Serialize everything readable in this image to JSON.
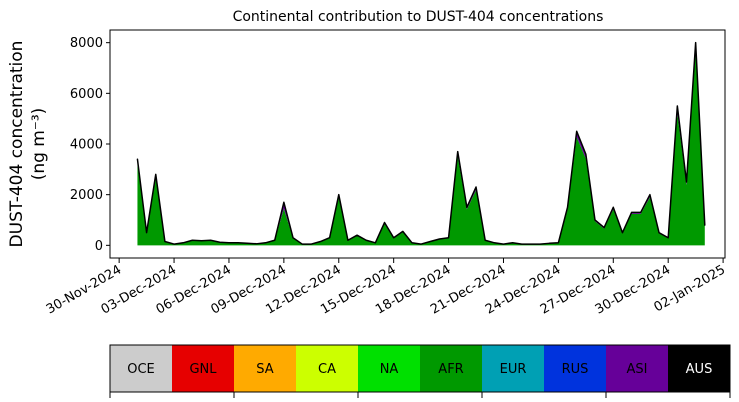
{
  "chart_data": {
    "type": "stacked_area",
    "title": "Continental contribution to DUST-404 concentrations",
    "ylabel": [
      "DUST-404 concentration",
      "(ng m⁻³)"
    ],
    "x": [
      "2024-12-01T00:00",
      "2024-12-01T12:00",
      "2024-12-02T00:00",
      "2024-12-02T12:00",
      "2024-12-03T00:00",
      "2024-12-03T12:00",
      "2024-12-04T00:00",
      "2024-12-04T12:00",
      "2024-12-05T00:00",
      "2024-12-05T12:00",
      "2024-12-06T00:00",
      "2024-12-06T12:00",
      "2024-12-07T00:00",
      "2024-12-07T12:00",
      "2024-12-08T00:00",
      "2024-12-08T12:00",
      "2024-12-09T00:00",
      "2024-12-09T12:00",
      "2024-12-10T00:00",
      "2024-12-10T12:00",
      "2024-12-11T00:00",
      "2024-12-11T12:00",
      "2024-12-12T00:00",
      "2024-12-12T12:00",
      "2024-12-13T00:00",
      "2024-12-13T12:00",
      "2024-12-14T00:00",
      "2024-12-14T12:00",
      "2024-12-15T00:00",
      "2024-12-15T12:00",
      "2024-12-16T00:00",
      "2024-12-16T12:00",
      "2024-12-17T00:00",
      "2024-12-17T12:00",
      "2024-12-18T00:00",
      "2024-12-18T12:00",
      "2024-12-19T00:00",
      "2024-12-19T12:00",
      "2024-12-20T00:00",
      "2024-12-20T12:00",
      "2024-12-21T00:00",
      "2024-12-21T12:00",
      "2024-12-22T00:00",
      "2024-12-22T12:00",
      "2024-12-23T00:00",
      "2024-12-23T12:00",
      "2024-12-24T00:00",
      "2024-12-24T12:00",
      "2024-12-25T00:00",
      "2024-12-25T12:00",
      "2024-12-26T00:00",
      "2024-12-26T12:00",
      "2024-12-27T00:00",
      "2024-12-27T12:00",
      "2024-12-28T00:00",
      "2024-12-28T12:00",
      "2024-12-29T00:00",
      "2024-12-29T12:00",
      "2024-12-30T00:00",
      "2024-12-30T12:00",
      "2024-12-31T00:00",
      "2024-12-31T12:00",
      "2025-01-01T00:00"
    ],
    "series": [
      {
        "name": "OCE",
        "color": "#cccccc",
        "values": [
          0,
          0,
          0,
          0,
          0,
          0,
          0,
          0,
          0,
          0,
          0,
          0,
          0,
          0,
          0,
          0,
          0,
          0,
          0,
          0,
          0,
          0,
          0,
          0,
          0,
          0,
          0,
          0,
          0,
          0,
          0,
          0,
          0,
          0,
          0,
          0,
          0,
          0,
          0,
          0,
          0,
          0,
          0,
          0,
          0,
          0,
          0,
          0,
          0,
          0,
          0,
          0,
          0,
          0,
          0,
          0,
          0,
          0,
          0,
          0,
          0,
          0,
          0
        ]
      },
      {
        "name": "GNL",
        "color": "#e60000",
        "values": [
          0,
          0,
          0,
          0,
          0,
          0,
          0,
          0,
          0,
          0,
          0,
          0,
          0,
          0,
          0,
          0,
          0,
          0,
          0,
          0,
          0,
          0,
          0,
          0,
          0,
          0,
          0,
          0,
          0,
          0,
          0,
          0,
          0,
          0,
          0,
          0,
          0,
          0,
          0,
          0,
          0,
          0,
          0,
          0,
          0,
          0,
          0,
          0,
          0,
          0,
          0,
          0,
          0,
          0,
          0,
          0,
          0,
          0,
          0,
          0,
          0,
          0,
          0
        ]
      },
      {
        "name": "SA",
        "color": "#ffaa00",
        "values": [
          0,
          0,
          0,
          0,
          0,
          0,
          0,
          0,
          0,
          0,
          0,
          0,
          0,
          0,
          0,
          0,
          0,
          0,
          0,
          0,
          0,
          0,
          0,
          0,
          0,
          0,
          0,
          0,
          0,
          0,
          0,
          0,
          0,
          0,
          0,
          0,
          0,
          0,
          0,
          0,
          0,
          0,
          0,
          0,
          0,
          0,
          0,
          0,
          0,
          0,
          0,
          0,
          0,
          0,
          0,
          0,
          0,
          0,
          0,
          0,
          0,
          0,
          0
        ]
      },
      {
        "name": "CA",
        "color": "#ccff00",
        "values": [
          0,
          0,
          0,
          0,
          0,
          0,
          0,
          0,
          0,
          0,
          0,
          0,
          0,
          0,
          0,
          0,
          0,
          0,
          0,
          0,
          0,
          0,
          0,
          0,
          0,
          0,
          0,
          0,
          0,
          0,
          0,
          0,
          0,
          0,
          0,
          0,
          0,
          0,
          0,
          0,
          0,
          0,
          0,
          0,
          0,
          0,
          0,
          0,
          0,
          0,
          0,
          0,
          0,
          0,
          0,
          0,
          0,
          0,
          0,
          0,
          0,
          0,
          0
        ]
      },
      {
        "name": "NA",
        "color": "#00e000",
        "values": [
          0,
          0,
          0,
          0,
          0,
          0,
          0,
          0,
          0,
          0,
          0,
          0,
          0,
          0,
          0,
          0,
          0,
          0,
          0,
          0,
          0,
          0,
          0,
          0,
          0,
          0,
          0,
          0,
          0,
          0,
          0,
          0,
          0,
          0,
          0,
          0,
          0,
          0,
          0,
          0,
          0,
          0,
          0,
          0,
          0,
          0,
          0,
          0,
          0,
          0,
          0,
          0,
          0,
          0,
          0,
          0,
          0,
          0,
          0,
          0,
          0,
          0,
          0
        ]
      },
      {
        "name": "AFR",
        "color": "#009900",
        "values": [
          3230,
          470,
          2660,
          140,
          50,
          90,
          190,
          170,
          190,
          110,
          90,
          90,
          80,
          60,
          90,
          190,
          1450,
          280,
          50,
          50,
          140,
          280,
          1900,
          190,
          380,
          190,
          90,
          850,
          280,
          520,
          90,
          50,
          140,
          240,
          280,
          3520,
          1420,
          2180,
          190,
          90,
          50,
          90,
          50,
          50,
          50,
          80,
          90,
          1420,
          4280,
          3420,
          950,
          660,
          1420,
          470,
          1240,
          1240,
          1900,
          470,
          280,
          5220,
          2380,
          7700,
          760
        ]
      },
      {
        "name": "EUR",
        "color": "#00a0b4",
        "values": [
          0,
          0,
          0,
          0,
          0,
          0,
          0,
          0,
          0,
          0,
          0,
          0,
          0,
          0,
          0,
          0,
          0,
          0,
          0,
          0,
          0,
          0,
          0,
          0,
          0,
          0,
          0,
          0,
          0,
          0,
          0,
          0,
          0,
          0,
          0,
          0,
          0,
          0,
          0,
          0,
          0,
          0,
          0,
          0,
          0,
          0,
          0,
          0,
          0,
          0,
          0,
          0,
          0,
          0,
          0,
          0,
          0,
          0,
          0,
          0,
          0,
          0,
          0
        ]
      },
      {
        "name": "RUS",
        "color": "#0033dd",
        "values": [
          0,
          0,
          0,
          0,
          0,
          0,
          0,
          0,
          0,
          0,
          0,
          0,
          0,
          0,
          0,
          0,
          0,
          0,
          0,
          0,
          0,
          0,
          0,
          0,
          0,
          0,
          0,
          0,
          0,
          0,
          0,
          0,
          0,
          0,
          0,
          0,
          0,
          0,
          0,
          0,
          0,
          0,
          0,
          0,
          0,
          0,
          0,
          0,
          0,
          0,
          0,
          0,
          0,
          0,
          0,
          0,
          0,
          0,
          0,
          0,
          0,
          0,
          0
        ]
      },
      {
        "name": "ASI",
        "color": "#660099",
        "values": [
          170,
          30,
          140,
          10,
          0,
          10,
          10,
          10,
          10,
          10,
          10,
          10,
          0,
          0,
          10,
          10,
          250,
          20,
          0,
          0,
          10,
          20,
          100,
          10,
          20,
          10,
          10,
          50,
          20,
          30,
          10,
          0,
          10,
          10,
          20,
          180,
          80,
          120,
          10,
          10,
          0,
          10,
          0,
          0,
          0,
          0,
          10,
          80,
          220,
          180,
          50,
          40,
          80,
          30,
          60,
          60,
          100,
          30,
          20,
          280,
          120,
          300,
          40
        ]
      },
      {
        "name": "AUS",
        "color": "#000000",
        "values": [
          0,
          0,
          0,
          0,
          0,
          0,
          0,
          0,
          0,
          0,
          0,
          0,
          0,
          0,
          0,
          0,
          0,
          0,
          0,
          0,
          0,
          0,
          0,
          0,
          0,
          0,
          0,
          0,
          0,
          0,
          0,
          0,
          0,
          0,
          0,
          0,
          0,
          0,
          0,
          0,
          0,
          0,
          0,
          0,
          0,
          0,
          0,
          0,
          0,
          0,
          0,
          0,
          0,
          0,
          0,
          0,
          0,
          0,
          0,
          0,
          0,
          0,
          0
        ]
      }
    ],
    "xlim": [
      "2024-11-29T12:00",
      "2025-01-02T02:30"
    ],
    "xticks": [
      {
        "value": "2024-11-30",
        "label": "30-Nov-2024"
      },
      {
        "value": "2024-12-03",
        "label": "03-Dec-2024"
      },
      {
        "value": "2024-12-06",
        "label": "06-Dec-2024"
      },
      {
        "value": "2024-12-09",
        "label": "09-Dec-2024"
      },
      {
        "value": "2024-12-12",
        "label": "12-Dec-2024"
      },
      {
        "value": "2024-12-15",
        "label": "15-Dec-2024"
      },
      {
        "value": "2024-12-18",
        "label": "18-Dec-2024"
      },
      {
        "value": "2024-12-21",
        "label": "21-Dec-2024"
      },
      {
        "value": "2024-12-24",
        "label": "24-Dec-2024"
      },
      {
        "value": "2024-12-27",
        "label": "27-Dec-2024"
      },
      {
        "value": "2024-12-30",
        "label": "30-Dec-2024"
      },
      {
        "value": "2025-01-02",
        "label": "02-Jan-2025"
      }
    ],
    "ylim": [
      -500,
      8500
    ],
    "yticks": [
      0,
      2000,
      4000,
      6000,
      8000
    ],
    "grid": false
  }
}
